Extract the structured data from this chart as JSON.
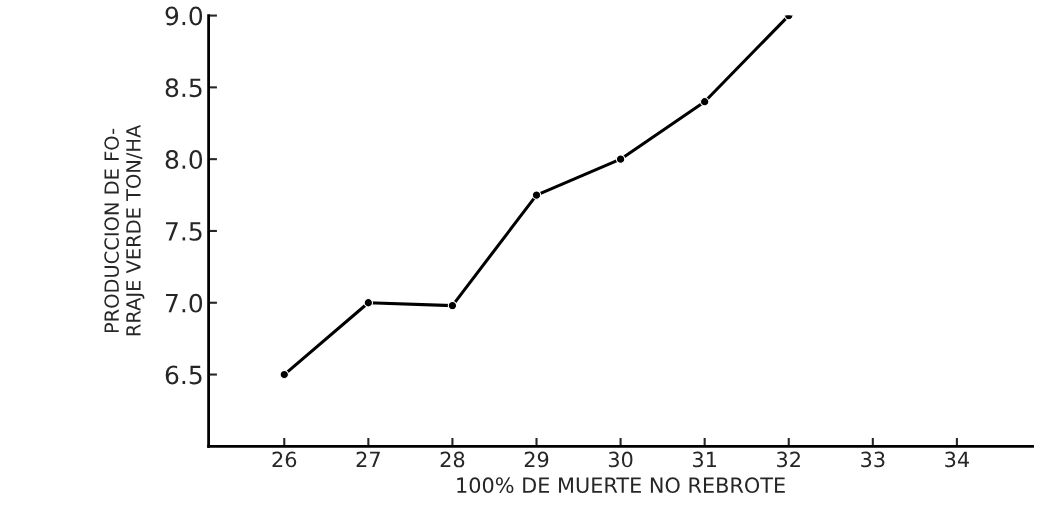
{
  "chart_data": {
    "type": "line",
    "xlabel": "100% DE MUERTE NO REBROTE",
    "ylabel": "PRODUCCION DE FO-\nRRAJE VERDE TON/HA",
    "x": [
      26,
      27,
      28,
      29,
      30,
      31,
      32
    ],
    "series": [
      {
        "color": "#000000",
        "values": [
          6.5,
          7.0,
          6.98,
          7.75,
          8.0,
          8.4,
          9.0
        ]
      }
    ],
    "xlim": [
      25.1,
      34.9
    ],
    "xticks": [
      26,
      27,
      28,
      29,
      30,
      31,
      32,
      33,
      34
    ],
    "ylim": [
      6.0,
      9.0
    ],
    "yticks": [
      6.5,
      {
        "value": 7,
        "label": "7.0"
      },
      7.5,
      {
        "value": 8,
        "label": "8.0"
      },
      8.5,
      {
        "value": 9,
        "label": "9.0"
      }
    ],
    "marker": "circle",
    "line_style": "solid",
    "grid": false,
    "legend": false
  }
}
